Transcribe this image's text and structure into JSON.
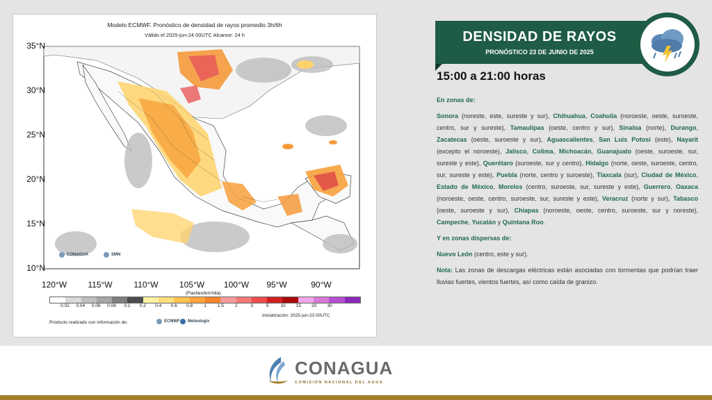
{
  "map": {
    "title": "Modelo ECMWF. Pronóstico de densidad de rayos promedio 3h/6h",
    "subtitle": "Válido el 2025-jun-24 00UTC   Alcance: 24 h",
    "lat_labels": [
      "35°N",
      "30°N",
      "25°N",
      "20°N",
      "15°N",
      "10°N"
    ],
    "lon_labels": [
      "120°W",
      "115°W",
      "110°W",
      "105°W",
      "100°W",
      "95°W",
      "90°W"
    ],
    "colorbar_labels": [
      "0.02",
      "0.04",
      "0.06",
      "0.08",
      "0.1",
      "0.2",
      "0.4",
      "0.6",
      "0.8",
      "1",
      "1.5",
      "2",
      "3",
      "5",
      "10",
      "15",
      "20",
      "30"
    ],
    "colorbar_colors": [
      "#ffffff",
      "#d9d9d9",
      "#bfbfbf",
      "#a6a6a6",
      "#7f7f7f",
      "#4d4d4d",
      "#fff3a3",
      "#ffe07a",
      "#ffc24d",
      "#ffa33a",
      "#f7842c",
      "#f59a9a",
      "#f27777",
      "#ee4c4c",
      "#d11f1f",
      "#a80a0a",
      "#f0a6e8",
      "#d77ad8",
      "#b64fd0",
      "#8a2bb8"
    ],
    "units": "(Flashes/km²/día)",
    "producto": "Producto realizado con información de:",
    "initialization": "Inicialización: 2025-jun-23 00UTC",
    "logo_conagua": "CONAGUA",
    "logo_smn": "SMN",
    "logo_ecmwf": "ECMWF",
    "logo_meteologix": "Meteologix"
  },
  "banner": {
    "title": "DENSIDAD DE RAYOS",
    "subtitle": "PRONÓSTICO 23 DE JUNIO DE 2025",
    "icon": "storm-cloud-icon"
  },
  "hours": "15:00 a 21:00 horas",
  "zones": {
    "intro": "En zonas de:",
    "dispersas_label": "Y en zonas dispersas de:",
    "dispersas_state": "Nuevo León",
    "dispersas_detail": " (centro, este y sur).",
    "nota_label": "Nota:",
    "nota_text": " Las zonas de descargas eléctricas están asociadas con tormentas que podrían traer lluvias fuertes, vientos fuertes, así como caída de granizo.",
    "items": [
      {
        "state": "Sonora",
        "detail": " (noreste, este, sureste y sur), "
      },
      {
        "state": "Chihuahua",
        "detail": ", "
      },
      {
        "state": "Coahuila",
        "detail": " (noroeste, oeste, suroeste, centro, sur y sureste), "
      },
      {
        "state": "Tamaulipas",
        "detail": " (oeste, centro y sur), "
      },
      {
        "state": "Sinaloa",
        "detail": " (norte), "
      },
      {
        "state": "Durango",
        "detail": ", "
      },
      {
        "state": "Zacatecas",
        "detail": " (oeste, suroeste y sur), "
      },
      {
        "state": "Aguascalientes",
        "detail": ", "
      },
      {
        "state": "San Luis Potosí",
        "detail": " (este), "
      },
      {
        "state": "Nayarit",
        "detail": " (excepto el noroeste), "
      },
      {
        "state": "Jalisco",
        "detail": ", "
      },
      {
        "state": "Colima",
        "detail": ", "
      },
      {
        "state": "Michoacán",
        "detail": ", "
      },
      {
        "state": "Guanajuato",
        "detail": " (oeste, suroeste, sur, sureste y este), "
      },
      {
        "state": "Querétaro",
        "detail": " (suroeste, sur y centro), "
      },
      {
        "state": "Hidalgo",
        "detail": " (norte, oeste, suroeste, centro, sur, sureste y este), "
      },
      {
        "state": "Puebla",
        "detail": " (norte, centro y suroeste), "
      },
      {
        "state": "Tlaxcala",
        "detail": " (sur), "
      },
      {
        "state": "Ciudad de México",
        "detail": ", "
      },
      {
        "state": "Estado de México",
        "detail": ", "
      },
      {
        "state": "Morelos",
        "detail": " (centro, suroeste, sur, sureste y este), "
      },
      {
        "state": "Guerrero",
        "detail": ", "
      },
      {
        "state": "Oaxaca",
        "detail": " (noroeste, oeste, centro, suroeste, sur, sureste y este), "
      },
      {
        "state": "Veracruz",
        "detail": " (norte y sur), "
      },
      {
        "state": "Tabasco",
        "detail": " (oeste, suroeste y sur), "
      },
      {
        "state": "Chiapas",
        "detail": " (noroeste, oeste, centro, suroeste, sur y noreste), "
      },
      {
        "state": "Campeche",
        "detail": ", "
      },
      {
        "state": "Yucatán",
        "detail": " y "
      },
      {
        "state": "Quintana Roo",
        "detail": "."
      }
    ]
  },
  "footer": {
    "name": "CONAGUA",
    "subtitle": "COMISIÓN NACIONAL DEL AGUA",
    "logo": "conagua-logo-icon"
  },
  "colors": {
    "banner_green": "#1f5c45",
    "state_green": "#1f6a4a",
    "footer_gold": "#a47d2c"
  }
}
